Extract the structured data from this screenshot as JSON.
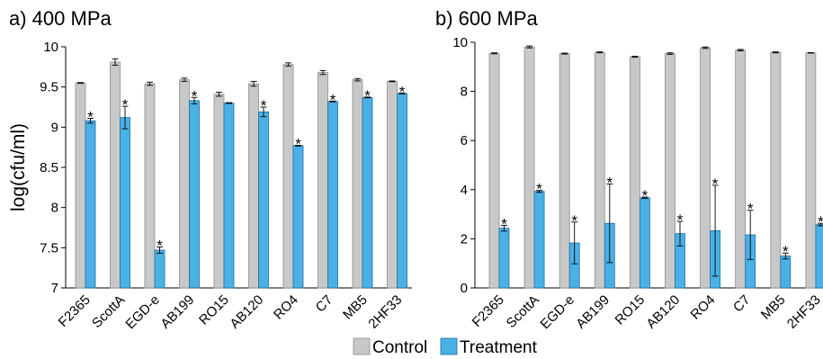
{
  "figure": {
    "ylabel": "log(cfu/ml)",
    "legend": [
      {
        "label": "Control",
        "color": "#c8c8c8",
        "stroke": "#8c8c8c"
      },
      {
        "label": "Treatment",
        "color": "#49b1e6",
        "stroke": "#1f6f9e"
      }
    ]
  },
  "chart_data": [
    {
      "type": "bar",
      "title": "a) 400 MPa",
      "ylabel": "log(cfu/ml)",
      "ylim": [
        7,
        10
      ],
      "yticks": [
        "7",
        "7.5",
        "8",
        "8.5",
        "9",
        "9.5",
        "10"
      ],
      "ytick_values": [
        7,
        7.5,
        8,
        8.5,
        9,
        9.5,
        10
      ],
      "categories": [
        "F2365",
        "ScottA",
        "EGD-e",
        "AB199",
        "RO15",
        "AB120",
        "RO4",
        "C7",
        "MB5",
        "2HF33"
      ],
      "series": [
        {
          "name": "Control",
          "values": [
            9.55,
            9.81,
            9.54,
            9.59,
            9.41,
            9.54,
            9.78,
            9.68,
            9.59,
            9.57
          ],
          "errors": [
            0.005,
            0.04,
            0.02,
            0.02,
            0.025,
            0.03,
            0.02,
            0.025,
            0.015,
            0.005
          ]
        },
        {
          "name": "Treatment",
          "values": [
            9.08,
            9.12,
            7.47,
            9.33,
            9.3,
            9.19,
            8.77,
            9.32,
            9.37,
            9.42
          ],
          "errors": [
            0.03,
            0.14,
            0.04,
            0.04,
            0.005,
            0.06,
            0.005,
            0.005,
            0.005,
            0.005
          ]
        }
      ],
      "annotations": [
        "*",
        "*",
        "*",
        "*",
        "",
        "*",
        "*",
        "*",
        "*",
        "*"
      ]
    },
    {
      "type": "bar",
      "title": "b) 600 MPa",
      "ylim": [
        0,
        10
      ],
      "yticks": [
        "0",
        "2",
        "4",
        "6",
        "8",
        "10"
      ],
      "ytick_values": [
        0,
        2,
        4,
        6,
        8,
        10
      ],
      "categories": [
        "F2365",
        "ScottA",
        "EGD-e",
        "AB199",
        "RO15",
        "AB120",
        "RO4",
        "C7",
        "MB5",
        "2HF33"
      ],
      "series": [
        {
          "name": "Control",
          "values": [
            9.55,
            9.81,
            9.54,
            9.59,
            9.41,
            9.54,
            9.78,
            9.68,
            9.59,
            9.57
          ],
          "errors": [
            0.02,
            0.04,
            0.02,
            0.02,
            0.02,
            0.03,
            0.03,
            0.03,
            0.02,
            0.01
          ]
        },
        {
          "name": "Treatment",
          "values": [
            2.43,
            3.93,
            1.83,
            2.63,
            3.67,
            2.21,
            2.33,
            2.16,
            1.3,
            2.58
          ],
          "errors": [
            0.12,
            0.04,
            0.85,
            1.6,
            0.03,
            0.5,
            1.85,
            1.0,
            0.12,
            0.05
          ]
        }
      ],
      "annotations": [
        "*",
        "*",
        "*",
        "*",
        "*",
        "*",
        "*",
        "*",
        "*",
        "*"
      ]
    }
  ]
}
